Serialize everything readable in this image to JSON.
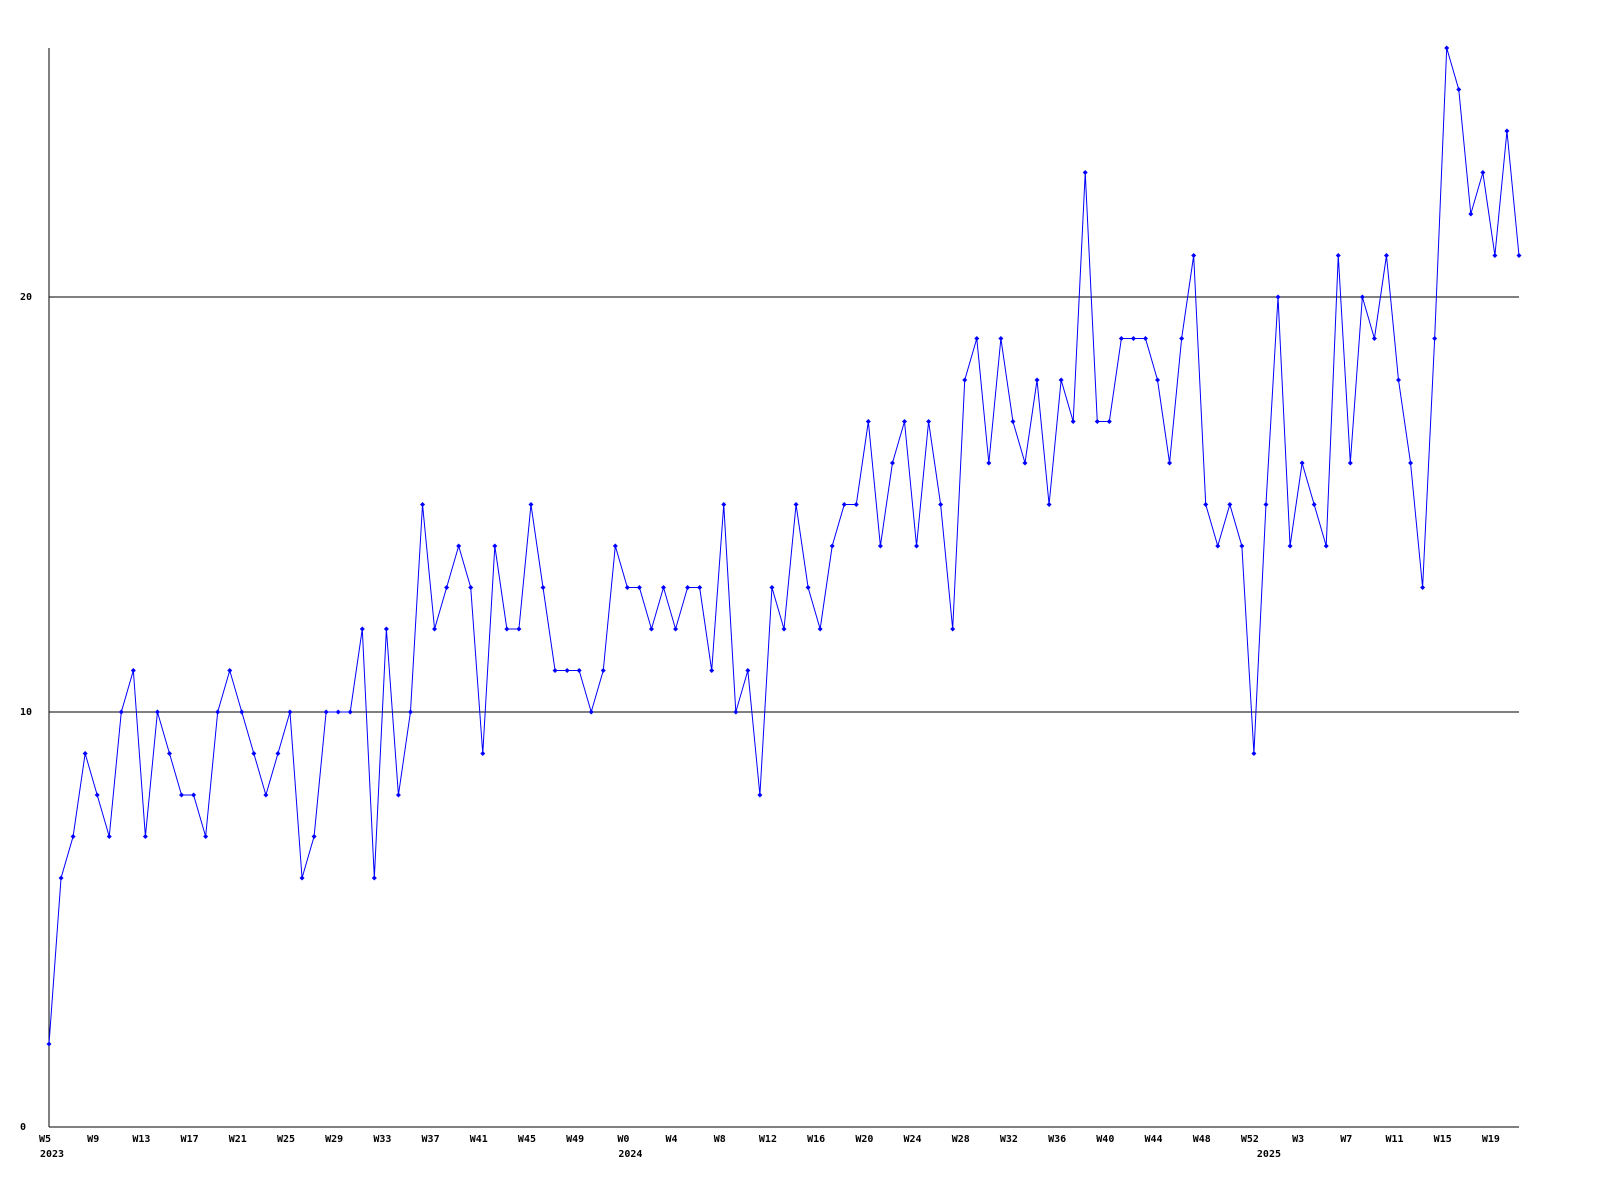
{
  "chart_data": {
    "type": "line",
    "categories": [
      "W5",
      null,
      null,
      null,
      "W9",
      null,
      null,
      null,
      "W13",
      null,
      null,
      null,
      "W17",
      null,
      null,
      null,
      "W21",
      null,
      null,
      null,
      "W25",
      null,
      null,
      null,
      "W29",
      null,
      null,
      null,
      "W33",
      null,
      null,
      null,
      "W37",
      null,
      null,
      null,
      "W41",
      null,
      null,
      null,
      "W45",
      null,
      null,
      null,
      "W49",
      null,
      null,
      null,
      "W0",
      null,
      null,
      null,
      "W4",
      null,
      null,
      null,
      "W8",
      null,
      null,
      null,
      "W12",
      null,
      null,
      null,
      "W16",
      null,
      null,
      null,
      "W20",
      null,
      null,
      null,
      "W24",
      null,
      null,
      null,
      "W28",
      null,
      null,
      null,
      "W32",
      null,
      null,
      null,
      "W36",
      null,
      null,
      null,
      "W40",
      null,
      null,
      null,
      "W44",
      null,
      null,
      null,
      "W48",
      null,
      null,
      null,
      "W52",
      null,
      null,
      null,
      "W3",
      null,
      null,
      null,
      "W7",
      null,
      null,
      null,
      "W11",
      null,
      null,
      null,
      "W15",
      null,
      null,
      null,
      "W19",
      null,
      null
    ],
    "year_labels": [
      "2023",
      null,
      null,
      null,
      null,
      null,
      null,
      null,
      null,
      null,
      null,
      null,
      null,
      null,
      null,
      null,
      null,
      null,
      null,
      null,
      null,
      null,
      null,
      null,
      null,
      null,
      null,
      null,
      null,
      null,
      null,
      null,
      null,
      null,
      null,
      null,
      null,
      null,
      null,
      null,
      null,
      null,
      null,
      null,
      null,
      null,
      null,
      null,
      "2024",
      null,
      null,
      null,
      null,
      null,
      null,
      null,
      null,
      null,
      null,
      null,
      null,
      null,
      null,
      null,
      null,
      null,
      null,
      null,
      null,
      null,
      null,
      null,
      null,
      null,
      null,
      null,
      null,
      null,
      null,
      null,
      null,
      null,
      null,
      null,
      null,
      null,
      null,
      null,
      null,
      null,
      null,
      null,
      null,
      null,
      null,
      null,
      null,
      null,
      null,
      null,
      null,
      "2025",
      null,
      null,
      null,
      null,
      null,
      null,
      null,
      null,
      null,
      null,
      null,
      null,
      null,
      null,
      null,
      null,
      null,
      null,
      null,
      null,
      null
    ],
    "series": [
      {
        "color": "#0000ff",
        "values": [
          2,
          6,
          7,
          9,
          8,
          7,
          10,
          11,
          7,
          10,
          9,
          8,
          8,
          7,
          10,
          11,
          10,
          9,
          8,
          9,
          10,
          6,
          7,
          10,
          10,
          10,
          12,
          6,
          12,
          8,
          10,
          15,
          12,
          13,
          14,
          13,
          9,
          14,
          12,
          12,
          15,
          13,
          11,
          11,
          11,
          10,
          11,
          14,
          13,
          13,
          12,
          13,
          12,
          13,
          13,
          11,
          15,
          10,
          11,
          8,
          13,
          12,
          15,
          13,
          12,
          14,
          15,
          15,
          17,
          14,
          16,
          17,
          14,
          17,
          15,
          12,
          18,
          19,
          16,
          19,
          17,
          16,
          18,
          15,
          18,
          17,
          23,
          17,
          17,
          19,
          19,
          19,
          18,
          16,
          19,
          21,
          15,
          14,
          15,
          14,
          9,
          15,
          20,
          14,
          16,
          15,
          14,
          21,
          16,
          20,
          19,
          21,
          18,
          16,
          13,
          19,
          26,
          25,
          22,
          23,
          21,
          24,
          21
        ]
      }
    ],
    "ylim": [
      0,
      26
    ],
    "yticks": [
      0,
      10,
      20
    ],
    "grid": true
  }
}
